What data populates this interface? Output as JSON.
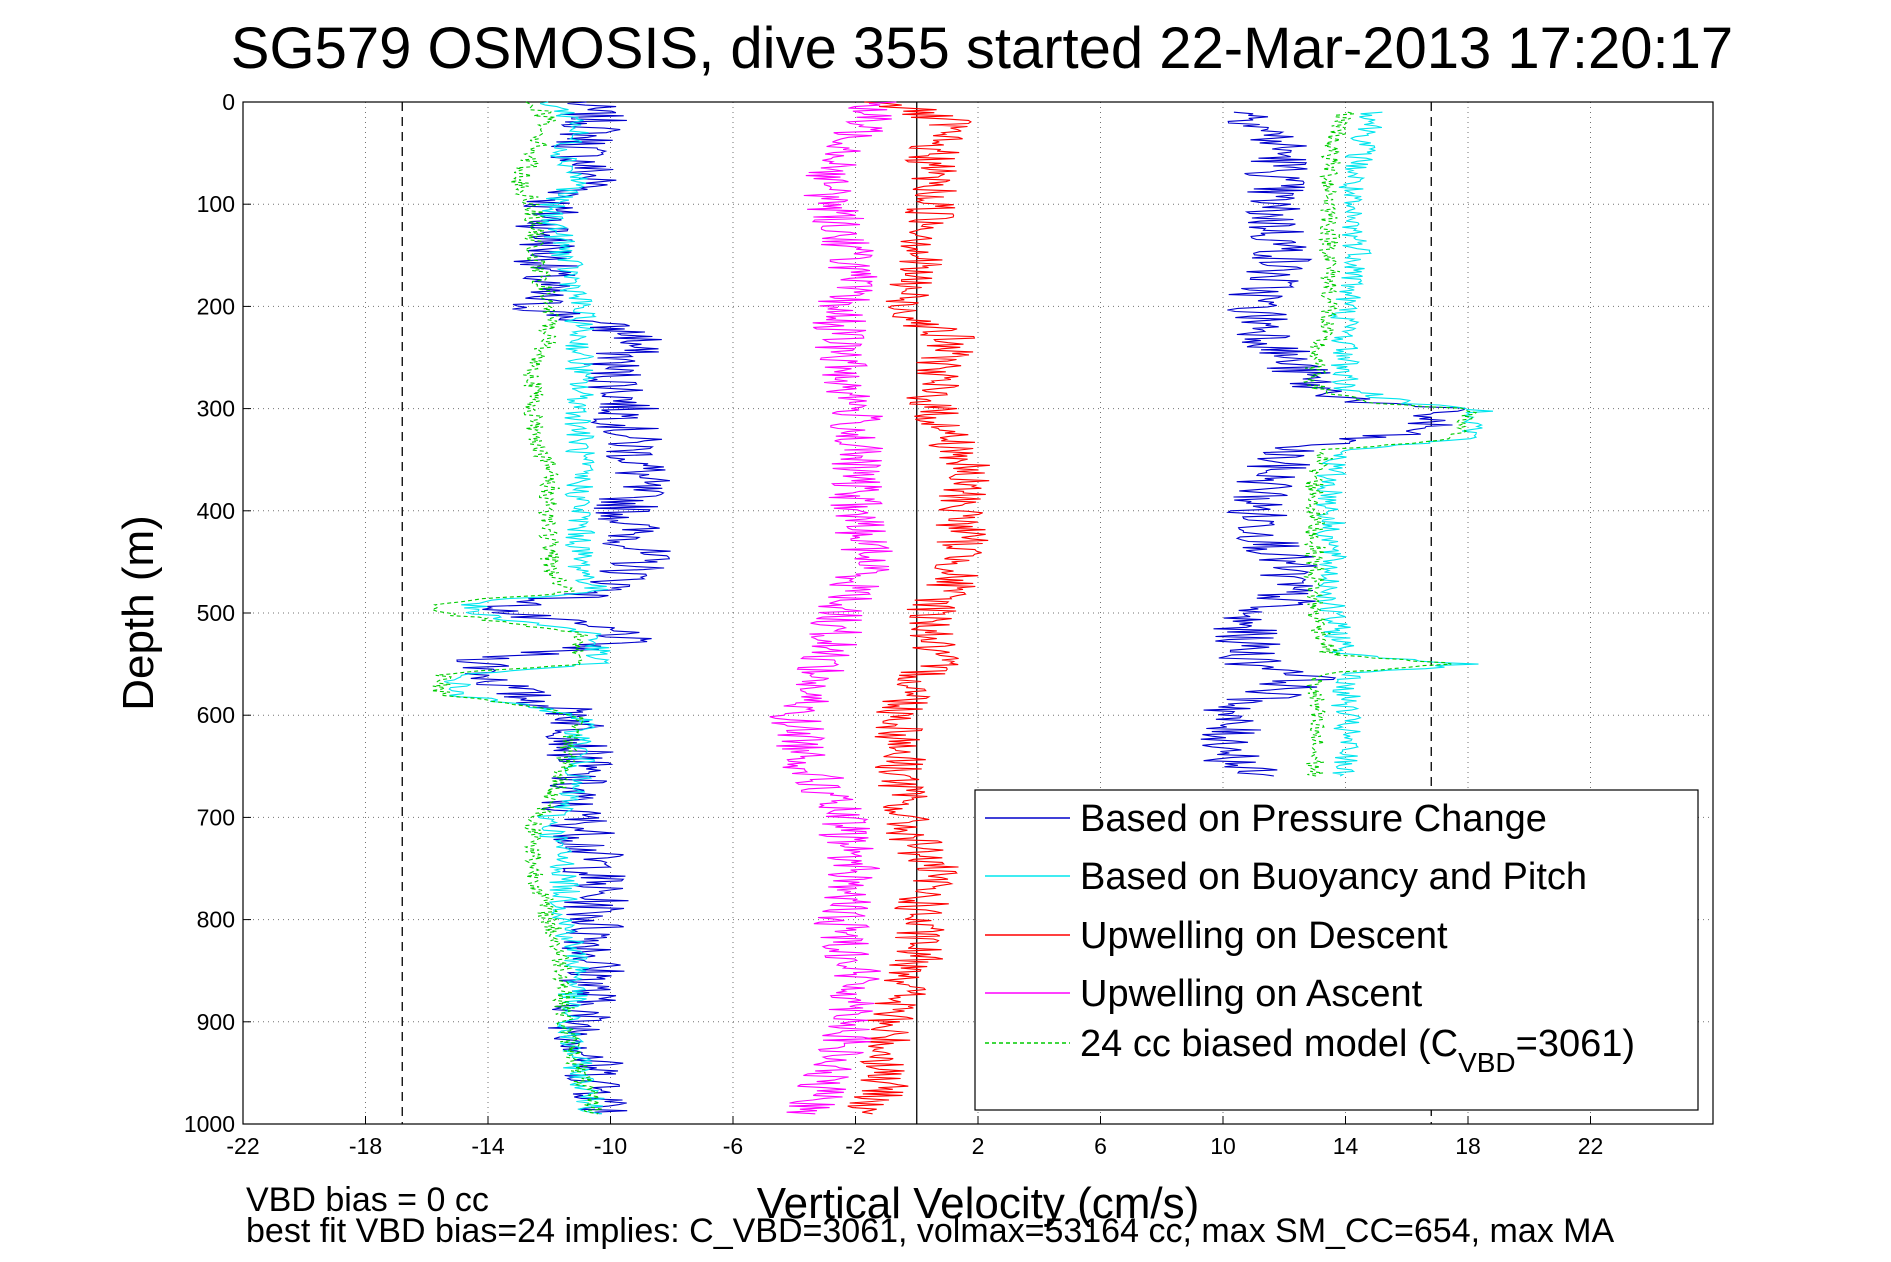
{
  "chart_data": {
    "type": "line",
    "title": "SG579 OSMOSIS, dive 355 started 22-Mar-2013 17:20:17",
    "xlabel": "Vertical Velocity (cm/s)",
    "ylabel": "Depth (m)",
    "xlim": [
      -22,
      26
    ],
    "ylim": [
      0,
      1000
    ],
    "y_reversed": true,
    "grid": true,
    "xticks": [
      -22,
      -18,
      -14,
      -10,
      -6,
      -2,
      2,
      6,
      10,
      14,
      18,
      22
    ],
    "yticks": [
      0,
      100,
      200,
      300,
      400,
      500,
      600,
      700,
      800,
      900,
      1000
    ],
    "reference_lines": [
      {
        "name": "bias-limit-left",
        "x": -16.8,
        "style": "dashed",
        "color": "#000000"
      },
      {
        "name": "bias-limit-right",
        "x": 16.8,
        "style": "dashed",
        "color": "#000000"
      },
      {
        "name": "zero-velocity",
        "x": 0,
        "style": "solid",
        "color": "#000000"
      }
    ],
    "legend_position": "bottom-right",
    "series": [
      {
        "name": "Based on Pressure Change",
        "color": "#0000cc",
        "style": "solid",
        "key": "pressure",
        "segments": [
          {
            "depth": [
              0,
              20,
              50,
              80,
              100,
              150,
              200,
              230,
              260,
              290,
              320,
              360,
              400,
              450,
              480,
              490,
              500,
              520,
              530,
              545,
              560,
              580,
              600,
              650,
              690,
              700,
              750,
              800,
              850,
              900,
              950,
              990
            ],
            "values": [
              -11,
              -10.5,
              -11,
              -10.5,
              -12,
              -12,
              -12.5,
              -9,
              -10,
              -9.5,
              -9.5,
              -9,
              -9.5,
              -9,
              -10,
              -13,
              -13.5,
              -9.5,
              -10,
              -14,
              -14,
              -13,
              -11,
              -11,
              -11.5,
              -11,
              -10.5,
              -10.5,
              -10.5,
              -11,
              -10.5,
              -10
            ]
          },
          {
            "depth": [
              10,
              50,
              100,
              150,
              200,
              250,
              280,
              295,
              300,
              320,
              340,
              400,
              450,
              490,
              500,
              550,
              560,
              600,
              650,
              660
            ],
            "values": [
              11,
              12,
              11.5,
              12,
              11,
              12,
              13,
              15,
              17,
              16.5,
              12,
              11,
              12,
              12,
              10.5,
              11,
              13,
              10,
              10.5,
              11
            ]
          }
        ]
      },
      {
        "name": "Based on Buoyancy and Pitch",
        "color": "#00e5ee",
        "style": "solid",
        "key": "buoyancy",
        "segments": [
          {
            "depth": [
              0,
              20,
              50,
              80,
              100,
              150,
              200,
              230,
              260,
              290,
              320,
              360,
              400,
              450,
              480,
              490,
              500,
              520,
              540,
              550,
              560,
              580,
              600,
              650,
              690,
              700,
              750,
              800,
              850,
              900,
              950,
              990
            ],
            "values": [
              -12,
              -11,
              -11.5,
              -11,
              -12,
              -11.5,
              -11,
              -11,
              -11,
              -11,
              -11,
              -11,
              -11,
              -11,
              -10.5,
              -14.5,
              -14.5,
              -10.5,
              -10.5,
              -10.5,
              -15,
              -15,
              -11,
              -11,
              -11.5,
              -12,
              -11.5,
              -11.5,
              -11,
              -11.5,
              -11,
              -10.5
            ]
          },
          {
            "depth": [
              10,
              50,
              100,
              150,
              200,
              250,
              280,
              295,
              300,
              330,
              340,
              360,
              400,
              450,
              500,
              540,
              550,
              560,
              600,
              650,
              660
            ],
            "values": [
              15,
              14.5,
              14,
              14.5,
              14,
              14,
              14,
              16,
              18.5,
              18,
              14,
              13.5,
              13.5,
              13.5,
              13.5,
              14,
              18,
              14,
              14,
              14,
              14
            ]
          }
        ]
      },
      {
        "name": "Upwelling on Descent",
        "color": "#ff0000",
        "style": "solid",
        "key": "descent",
        "segments": [
          {
            "depth": [
              0,
              20,
              40,
              80,
              120,
              160,
              200,
              230,
              250,
              270,
              300,
              350,
              400,
              450,
              500,
              550,
              570,
              600,
              650,
              700,
              750,
              800,
              850,
              900,
              950,
              990
            ],
            "values": [
              -1,
              1,
              0.5,
              0.5,
              0.5,
              0,
              -0.5,
              1,
              1,
              0.5,
              0.5,
              1.5,
              1.5,
              1.5,
              0.5,
              0.5,
              0,
              -0.5,
              -0.5,
              -0.5,
              0.5,
              0,
              0,
              -1,
              -1,
              -1.5
            ]
          }
        ]
      },
      {
        "name": "Upwelling on Ascent",
        "color": "#ff00ff",
        "style": "solid",
        "key": "ascent",
        "segments": [
          {
            "depth": [
              0,
              40,
              80,
              120,
              160,
              200,
              250,
              300,
              350,
              400,
              450,
              500,
              550,
              600,
              650,
              700,
              750,
              800,
              850,
              900,
              950,
              990
            ],
            "values": [
              -1.5,
              -2,
              -3,
              -2.5,
              -2,
              -2.5,
              -2.5,
              -2,
              -2,
              -2,
              -1.5,
              -2.5,
              -3,
              -4,
              -3.5,
              -2.5,
              -2,
              -2.5,
              -2,
              -2,
              -3,
              -3.5
            ]
          }
        ]
      },
      {
        "name": "24 cc biased model",
        "legend_suffix": ")",
        "subscript_label": "C",
        "subscript": "VBD",
        "subscript_value": "=3061",
        "color": "#00cc00",
        "style": "dashed",
        "key": "model",
        "segments": [
          {
            "depth": [
              0,
              20,
              50,
              80,
              100,
              150,
              200,
              230,
              260,
              290,
              320,
              360,
              400,
              450,
              480,
              490,
              500,
              520,
              540,
              550,
              560,
              580,
              600,
              650,
              690,
              700,
              750,
              800,
              850,
              900,
              950,
              990
            ],
            "values": [
              -12.5,
              -12,
              -12.5,
              -13,
              -12.5,
              -12.5,
              -12,
              -12,
              -12.5,
              -12.5,
              -12.5,
              -12,
              -12,
              -12,
              -11.5,
              -15.5,
              -15.5,
              -11,
              -11,
              -11,
              -15.5,
              -15.5,
              -11,
              -11.5,
              -12,
              -12.5,
              -12.5,
              -12,
              -11.5,
              -11.5,
              -11,
              -10.5
            ]
          },
          {
            "depth": [
              10,
              50,
              100,
              150,
              200,
              250,
              280,
              295,
              300,
              330,
              340,
              360,
              400,
              450,
              500,
              540,
              550,
              560,
              600,
              650,
              660
            ],
            "values": [
              14,
              13.5,
              13.5,
              13.5,
              13.5,
              13,
              13,
              15,
              18,
              17.5,
              13.5,
              13,
              13,
              13,
              13,
              13.5,
              17.5,
              13,
              13,
              13,
              13
            ]
          }
        ]
      }
    ]
  },
  "footer": {
    "bias_note": "VBD bias = 0 cc",
    "fit_note": "best fit VBD bias=24 implies: C_VBD=3061, volmax=53164 cc, max SM_CC=654, max MA"
  }
}
